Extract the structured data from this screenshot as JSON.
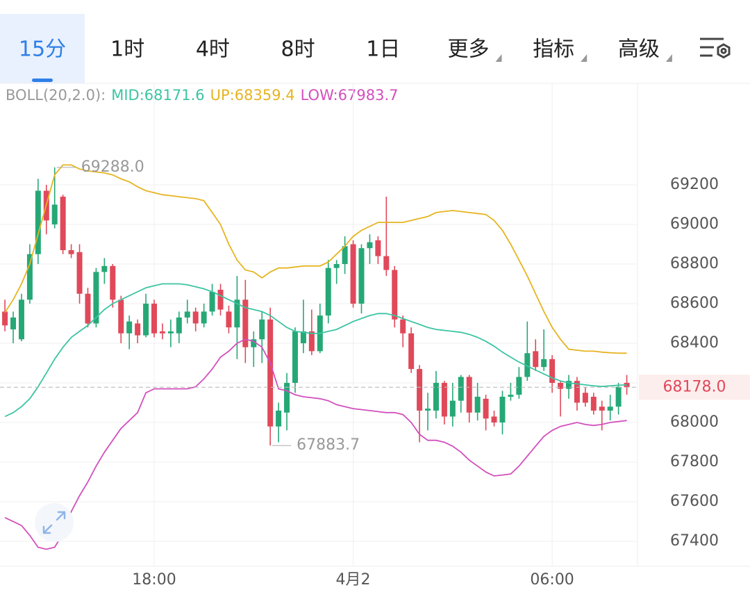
{
  "tabs": [
    {
      "label": "15分",
      "selected": true
    },
    {
      "label": "1时"
    },
    {
      "label": "4时"
    },
    {
      "label": "8时"
    },
    {
      "label": "1日"
    },
    {
      "label": "更多",
      "dropdown": true
    },
    {
      "label": "指标",
      "dropdown": true
    },
    {
      "label": "高级",
      "dropdown": true
    }
  ],
  "chart_data": {
    "type": "candlestick",
    "indicator": "BOLL(20,2.0):",
    "up_color": "#26a876",
    "down_color": "#e0495a",
    "categories": [
      null,
      null,
      null,
      null,
      null,
      null,
      null,
      null,
      null,
      null,
      null,
      null,
      null,
      null,
      null,
      null,
      null,
      null,
      "18:00",
      null,
      null,
      null,
      null,
      null,
      null,
      null,
      null,
      null,
      null,
      null,
      null,
      null,
      null,
      null,
      null,
      null,
      null,
      null,
      null,
      null,
      null,
      null,
      "4月2",
      null,
      null,
      null,
      null,
      null,
      null,
      null,
      null,
      null,
      null,
      null,
      null,
      null,
      null,
      null,
      null,
      null,
      null,
      null,
      null,
      null,
      null,
      null,
      "06:00",
      null,
      null,
      null,
      null,
      null,
      null,
      null,
      null,
      null
    ],
    "open": [
      68560,
      68470,
      68420,
      68620,
      68850,
      69170,
      69000,
      69140,
      68870,
      68860,
      68650,
      68500,
      68760,
      68790,
      68620,
      68450,
      68500,
      68440,
      68600,
      68460,
      68450,
      68450,
      68530,
      68560,
      68500,
      68560,
      68670,
      68560,
      68480,
      68620,
      68380,
      68420,
      68520,
      67980,
      68050,
      68200,
      68400,
      68460,
      68360,
      68540,
      68780,
      68800,
      68900,
      68600,
      68880,
      68920,
      68840,
      68770,
      68520,
      68450,
      68270,
      68060,
      68060,
      68200,
      68030,
      68110,
      68230,
      68050,
      68120,
      68030,
      68000,
      68130,
      68140,
      68230,
      68360,
      68280,
      68320,
      68200,
      68170,
      68210,
      68150,
      68130,
      68080,
      68060,
      68080,
      68200
    ],
    "high": [
      68620,
      68560,
      68650,
      68900,
      69230,
      69200,
      69288,
      69150,
      68900,
      68900,
      68680,
      68780,
      68830,
      68800,
      68640,
      68540,
      68520,
      68650,
      68620,
      68500,
      68520,
      68560,
      68620,
      68580,
      68600,
      68700,
      68700,
      68590,
      68740,
      68720,
      68460,
      68560,
      68580,
      68100,
      68250,
      68480,
      68620,
      68570,
      68600,
      68820,
      68820,
      68940,
      68920,
      68900,
      68950,
      68940,
      69140,
      68790,
      68540,
      68480,
      68290,
      68150,
      68260,
      68210,
      68200,
      68240,
      68240,
      68200,
      68140,
      68060,
      68160,
      68200,
      68280,
      68510,
      68420,
      68470,
      68340,
      68210,
      68240,
      68230,
      68180,
      68150,
      68110,
      68140,
      68200,
      68240
    ],
    "low": [
      68460,
      68400,
      68410,
      68600,
      68800,
      68950,
      68980,
      68850,
      68830,
      68600,
      68480,
      68480,
      68700,
      68580,
      68400,
      68370,
      68400,
      68430,
      68430,
      68420,
      68380,
      68400,
      68500,
      68460,
      68480,
      68540,
      68540,
      68450,
      68320,
      68300,
      68280,
      68300,
      67883.7,
      67900,
      67960,
      68150,
      68350,
      68340,
      68350,
      68500,
      68700,
      68750,
      68580,
      68550,
      68800,
      68800,
      68740,
      68480,
      68380,
      68250,
      67900,
      67960,
      68020,
      67990,
      67980,
      68050,
      68000,
      68010,
      67960,
      67980,
      67940,
      68110,
      68120,
      68210,
      68260,
      68260,
      68150,
      68030,
      68120,
      68060,
      68080,
      68040,
      67960,
      68010,
      68040,
      68140
    ],
    "close": [
      68490,
      68530,
      68620,
      68850,
      69170,
      69020,
      69100,
      68870,
      68850,
      68650,
      68500,
      68760,
      68790,
      68620,
      68450,
      68510,
      68440,
      68600,
      68450,
      68450,
      68460,
      68530,
      68560,
      68500,
      68560,
      68660,
      68570,
      68480,
      68620,
      68380,
      68420,
      68520,
      67980,
      68060,
      68200,
      68460,
      68460,
      68360,
      68540,
      68780,
      68800,
      68890,
      68600,
      68880,
      68910,
      68840,
      68770,
      68520,
      68450,
      68270,
      68060,
      68070,
      68200,
      68030,
      68110,
      68230,
      68050,
      68130,
      68020,
      68000,
      68130,
      68140,
      68230,
      68350,
      68280,
      68320,
      68200,
      68170,
      68210,
      68100,
      68100,
      68060,
      68060,
      68080,
      68180,
      68178
    ],
    "bands": [
      {
        "label": "MID:68171.6",
        "color": "#3cc4a2",
        "values": [
          68030,
          68050,
          68080,
          68120,
          68180,
          68250,
          68320,
          68380,
          68430,
          68460,
          68490,
          68530,
          68570,
          68600,
          68620,
          68640,
          68660,
          68680,
          68690,
          68700,
          68700,
          68700,
          68695,
          68685,
          68675,
          68660,
          68640,
          68620,
          68600,
          68580,
          68570,
          68560,
          68540,
          68510,
          68480,
          68460,
          68455,
          68450,
          68450,
          68460,
          68470,
          68490,
          68510,
          68525,
          68540,
          68550,
          68550,
          68540,
          68525,
          68510,
          68495,
          68480,
          68470,
          68465,
          68460,
          68455,
          68445,
          68430,
          68410,
          68385,
          68355,
          68330,
          68305,
          68285,
          68265,
          68245,
          68225,
          68210,
          68200,
          68195,
          68190,
          68185,
          68182,
          68185,
          68188,
          68190
        ]
      },
      {
        "label": "UP:68359.4",
        "color": "#e6b420",
        "values": [
          68555,
          68620,
          68700,
          68800,
          68950,
          69100,
          69250,
          69300,
          69300,
          69280,
          69270,
          69265,
          69260,
          69250,
          69230,
          69215,
          69190,
          69170,
          69160,
          69150,
          69145,
          69140,
          69135,
          69130,
          69120,
          69060,
          69000,
          68900,
          68820,
          68770,
          68760,
          68730,
          68760,
          68780,
          68780,
          68785,
          68790,
          68790,
          68790,
          68810,
          68850,
          68890,
          68940,
          68970,
          68990,
          69010,
          69010,
          69010,
          69010,
          69020,
          69030,
          69040,
          69060,
          69065,
          69070,
          69065,
          69060,
          69055,
          69050,
          69020,
          68970,
          68900,
          68820,
          68740,
          68650,
          68560,
          68480,
          68420,
          68370,
          68365,
          68360,
          68360,
          68355,
          68352,
          68350,
          68350
        ]
      },
      {
        "label": "LOW:67983.7",
        "color": "#d24fbd",
        "values": [
          67520,
          67500,
          67480,
          67430,
          67370,
          67360,
          67370,
          67440,
          67550,
          67630,
          67700,
          67780,
          67850,
          67910,
          67970,
          68010,
          68050,
          68150,
          68170,
          68170,
          68170,
          68170,
          68170,
          68180,
          68220,
          68270,
          68330,
          68360,
          68400,
          68420,
          68410,
          68380,
          68300,
          68170,
          68160,
          68140,
          68130,
          68125,
          68120,
          68110,
          68090,
          68080,
          68070,
          68065,
          68060,
          68055,
          68050,
          68050,
          68040,
          68000,
          67940,
          67910,
          67910,
          67900,
          67880,
          67850,
          67810,
          67780,
          67750,
          67730,
          67735,
          67740,
          67780,
          67830,
          67880,
          67930,
          67960,
          67980,
          67990,
          68000,
          67990,
          67985,
          67990,
          68000,
          68005,
          68010
        ]
      }
    ],
    "ylim": [
      67274,
      69712
    ],
    "yticks": [
      67400,
      67600,
      67800,
      68000,
      68200,
      68400,
      68600,
      68800,
      69000,
      69200
    ],
    "grid": true,
    "last_price": {
      "value": 68178,
      "label": "68178.0"
    },
    "high_marker": {
      "value": 69288,
      "label": "69288.0"
    },
    "low_marker": {
      "value": 67883.7,
      "label": "67883.7"
    }
  }
}
